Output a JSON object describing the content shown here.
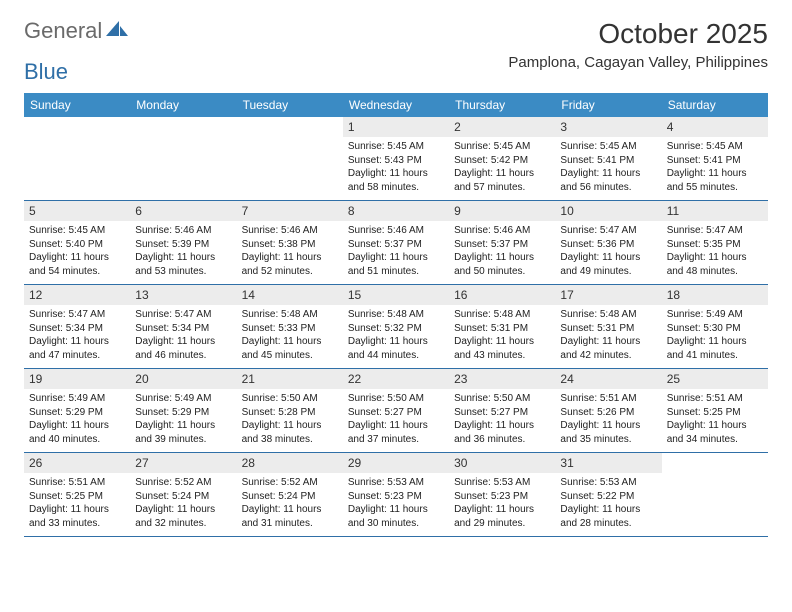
{
  "logo": {
    "general": "General",
    "blue": "Blue"
  },
  "title": "October 2025",
  "location": "Pamplona, Cagayan Valley, Philippines",
  "colors": {
    "header_bg": "#3b8bc4",
    "header_text": "#ffffff",
    "border": "#2f6fa7",
    "daynum_bg": "#ececec",
    "text": "#222222",
    "logo_gray": "#6a6a6a",
    "logo_blue": "#2f6fa7"
  },
  "dow": [
    "Sunday",
    "Monday",
    "Tuesday",
    "Wednesday",
    "Thursday",
    "Friday",
    "Saturday"
  ],
  "weeks": [
    [
      {
        "n": "",
        "sunrise": "",
        "sunset": "",
        "daylight": ""
      },
      {
        "n": "",
        "sunrise": "",
        "sunset": "",
        "daylight": ""
      },
      {
        "n": "",
        "sunrise": "",
        "sunset": "",
        "daylight": ""
      },
      {
        "n": "1",
        "sunrise": "Sunrise: 5:45 AM",
        "sunset": "Sunset: 5:43 PM",
        "daylight": "Daylight: 11 hours and 58 minutes."
      },
      {
        "n": "2",
        "sunrise": "Sunrise: 5:45 AM",
        "sunset": "Sunset: 5:42 PM",
        "daylight": "Daylight: 11 hours and 57 minutes."
      },
      {
        "n": "3",
        "sunrise": "Sunrise: 5:45 AM",
        "sunset": "Sunset: 5:41 PM",
        "daylight": "Daylight: 11 hours and 56 minutes."
      },
      {
        "n": "4",
        "sunrise": "Sunrise: 5:45 AM",
        "sunset": "Sunset: 5:41 PM",
        "daylight": "Daylight: 11 hours and 55 minutes."
      }
    ],
    [
      {
        "n": "5",
        "sunrise": "Sunrise: 5:45 AM",
        "sunset": "Sunset: 5:40 PM",
        "daylight": "Daylight: 11 hours and 54 minutes."
      },
      {
        "n": "6",
        "sunrise": "Sunrise: 5:46 AM",
        "sunset": "Sunset: 5:39 PM",
        "daylight": "Daylight: 11 hours and 53 minutes."
      },
      {
        "n": "7",
        "sunrise": "Sunrise: 5:46 AM",
        "sunset": "Sunset: 5:38 PM",
        "daylight": "Daylight: 11 hours and 52 minutes."
      },
      {
        "n": "8",
        "sunrise": "Sunrise: 5:46 AM",
        "sunset": "Sunset: 5:37 PM",
        "daylight": "Daylight: 11 hours and 51 minutes."
      },
      {
        "n": "9",
        "sunrise": "Sunrise: 5:46 AM",
        "sunset": "Sunset: 5:37 PM",
        "daylight": "Daylight: 11 hours and 50 minutes."
      },
      {
        "n": "10",
        "sunrise": "Sunrise: 5:47 AM",
        "sunset": "Sunset: 5:36 PM",
        "daylight": "Daylight: 11 hours and 49 minutes."
      },
      {
        "n": "11",
        "sunrise": "Sunrise: 5:47 AM",
        "sunset": "Sunset: 5:35 PM",
        "daylight": "Daylight: 11 hours and 48 minutes."
      }
    ],
    [
      {
        "n": "12",
        "sunrise": "Sunrise: 5:47 AM",
        "sunset": "Sunset: 5:34 PM",
        "daylight": "Daylight: 11 hours and 47 minutes."
      },
      {
        "n": "13",
        "sunrise": "Sunrise: 5:47 AM",
        "sunset": "Sunset: 5:34 PM",
        "daylight": "Daylight: 11 hours and 46 minutes."
      },
      {
        "n": "14",
        "sunrise": "Sunrise: 5:48 AM",
        "sunset": "Sunset: 5:33 PM",
        "daylight": "Daylight: 11 hours and 45 minutes."
      },
      {
        "n": "15",
        "sunrise": "Sunrise: 5:48 AM",
        "sunset": "Sunset: 5:32 PM",
        "daylight": "Daylight: 11 hours and 44 minutes."
      },
      {
        "n": "16",
        "sunrise": "Sunrise: 5:48 AM",
        "sunset": "Sunset: 5:31 PM",
        "daylight": "Daylight: 11 hours and 43 minutes."
      },
      {
        "n": "17",
        "sunrise": "Sunrise: 5:48 AM",
        "sunset": "Sunset: 5:31 PM",
        "daylight": "Daylight: 11 hours and 42 minutes."
      },
      {
        "n": "18",
        "sunrise": "Sunrise: 5:49 AM",
        "sunset": "Sunset: 5:30 PM",
        "daylight": "Daylight: 11 hours and 41 minutes."
      }
    ],
    [
      {
        "n": "19",
        "sunrise": "Sunrise: 5:49 AM",
        "sunset": "Sunset: 5:29 PM",
        "daylight": "Daylight: 11 hours and 40 minutes."
      },
      {
        "n": "20",
        "sunrise": "Sunrise: 5:49 AM",
        "sunset": "Sunset: 5:29 PM",
        "daylight": "Daylight: 11 hours and 39 minutes."
      },
      {
        "n": "21",
        "sunrise": "Sunrise: 5:50 AM",
        "sunset": "Sunset: 5:28 PM",
        "daylight": "Daylight: 11 hours and 38 minutes."
      },
      {
        "n": "22",
        "sunrise": "Sunrise: 5:50 AM",
        "sunset": "Sunset: 5:27 PM",
        "daylight": "Daylight: 11 hours and 37 minutes."
      },
      {
        "n": "23",
        "sunrise": "Sunrise: 5:50 AM",
        "sunset": "Sunset: 5:27 PM",
        "daylight": "Daylight: 11 hours and 36 minutes."
      },
      {
        "n": "24",
        "sunrise": "Sunrise: 5:51 AM",
        "sunset": "Sunset: 5:26 PM",
        "daylight": "Daylight: 11 hours and 35 minutes."
      },
      {
        "n": "25",
        "sunrise": "Sunrise: 5:51 AM",
        "sunset": "Sunset: 5:25 PM",
        "daylight": "Daylight: 11 hours and 34 minutes."
      }
    ],
    [
      {
        "n": "26",
        "sunrise": "Sunrise: 5:51 AM",
        "sunset": "Sunset: 5:25 PM",
        "daylight": "Daylight: 11 hours and 33 minutes."
      },
      {
        "n": "27",
        "sunrise": "Sunrise: 5:52 AM",
        "sunset": "Sunset: 5:24 PM",
        "daylight": "Daylight: 11 hours and 32 minutes."
      },
      {
        "n": "28",
        "sunrise": "Sunrise: 5:52 AM",
        "sunset": "Sunset: 5:24 PM",
        "daylight": "Daylight: 11 hours and 31 minutes."
      },
      {
        "n": "29",
        "sunrise": "Sunrise: 5:53 AM",
        "sunset": "Sunset: 5:23 PM",
        "daylight": "Daylight: 11 hours and 30 minutes."
      },
      {
        "n": "30",
        "sunrise": "Sunrise: 5:53 AM",
        "sunset": "Sunset: 5:23 PM",
        "daylight": "Daylight: 11 hours and 29 minutes."
      },
      {
        "n": "31",
        "sunrise": "Sunrise: 5:53 AM",
        "sunset": "Sunset: 5:22 PM",
        "daylight": "Daylight: 11 hours and 28 minutes."
      },
      {
        "n": "",
        "sunrise": "",
        "sunset": "",
        "daylight": ""
      }
    ]
  ]
}
